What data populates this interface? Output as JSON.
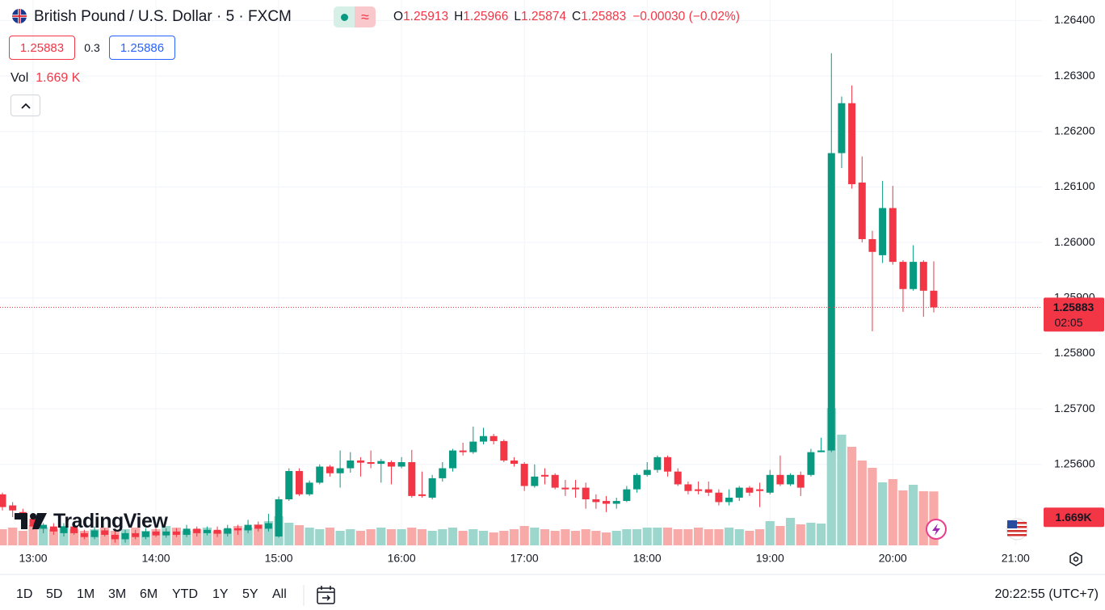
{
  "header": {
    "title": "British Pound / U.S. Dollar · 5 · FXCM",
    "o": "O",
    "h": "H",
    "l": "L",
    "c": "C",
    "change": "−0.00030 (−0.02%)",
    "spread": "0.3",
    "buy": "1.25886",
    "vol_label": "Vol",
    "vol": "1.669 K"
  },
  "logo": "TradingView",
  "footer": {
    "ranges": [
      "1D",
      "5D",
      "1M",
      "3M",
      "6M",
      "YTD",
      "1Y",
      "5Y",
      "All"
    ],
    "clock": "20:22:55 (UTC+7)"
  },
  "chart_data": {
    "type": "candlestick",
    "categories": [
      null,
      null,
      null,
      "13:00",
      null,
      null,
      null,
      null,
      null,
      null,
      null,
      null,
      null,
      null,
      null,
      "14:00",
      null,
      null,
      null,
      null,
      null,
      null,
      null,
      null,
      null,
      null,
      null,
      "15:00",
      null,
      null,
      null,
      null,
      null,
      null,
      null,
      null,
      null,
      null,
      null,
      "16:00",
      null,
      null,
      null,
      null,
      null,
      null,
      null,
      null,
      null,
      null,
      null,
      "17:00",
      null,
      null,
      null,
      null,
      null,
      null,
      null,
      null,
      null,
      null,
      null,
      "18:00",
      null,
      null,
      null,
      null,
      null,
      null,
      null,
      null,
      null,
      null,
      null,
      "19:00",
      null,
      null,
      null,
      null,
      null,
      null,
      null,
      null,
      null,
      null,
      null,
      "20:00",
      null,
      null,
      null,
      null,
      null,
      null,
      null,
      null,
      null,
      null,
      null,
      "21:00"
    ],
    "open": [
      1.25546,
      1.25526,
      1.25514,
      1.25502,
      1.25484,
      1.25488,
      1.25476,
      1.25488,
      1.25476,
      1.25469,
      1.25481,
      1.25473,
      1.25465,
      1.25476,
      1.25469,
      1.25479,
      1.25472,
      1.25479,
      1.25473,
      1.25484,
      1.25476,
      1.25482,
      1.25475,
      1.25485,
      1.25481,
      1.25491,
      1.25484,
      1.2547,
      1.25537,
      1.25588,
      1.25546,
      1.25567,
      1.25596,
      1.25584,
      1.25593,
      1.25607,
      1.25604,
      1.25601,
      1.25604,
      1.25596,
      1.25604,
      1.25546,
      1.2554,
      1.25575,
      1.25593,
      1.25625,
      1.25622,
      1.25641,
      1.25651,
      1.25642,
      1.25607,
      1.25601,
      1.25561,
      1.25581,
      1.25581,
      1.25558,
      1.25558,
      1.25558,
      1.25537,
      1.25534,
      1.25529,
      1.25534,
      1.25555,
      1.25581,
      1.2559,
      1.25613,
      1.25587,
      1.25564,
      1.25555,
      1.25555,
      1.25549,
      1.25532,
      1.2554,
      1.25558,
      1.25555,
      1.25549,
      1.25581,
      1.25564,
      1.25581,
      1.25581,
      1.25622,
      1.25625,
      1.26161,
      1.26251,
      1.26108,
      1.26006,
      1.25977,
      1.26062,
      1.25965,
      1.25916,
      1.25965,
      1.25913,
      null,
      null,
      null,
      null,
      null,
      null,
      null,
      null
    ],
    "high": [
      1.25549,
      1.25532,
      1.2552,
      1.25511,
      1.25494,
      1.25494,
      1.25494,
      1.25497,
      1.25482,
      1.25488,
      1.25485,
      1.25482,
      1.25482,
      1.25482,
      1.25485,
      1.25488,
      1.25485,
      1.25485,
      1.25491,
      1.25488,
      1.25488,
      1.25488,
      1.25491,
      1.25491,
      1.255,
      1.25497,
      1.25511,
      1.25542,
      1.25593,
      1.25593,
      1.25571,
      1.256,
      1.25599,
      1.25625,
      1.25622,
      1.25613,
      1.25625,
      1.2561,
      1.25607,
      1.25613,
      1.25626,
      1.25587,
      1.25581,
      1.25604,
      1.25628,
      1.25639,
      1.25668,
      1.25666,
      1.25655,
      1.25645,
      1.25613,
      1.25604,
      1.256,
      1.25593,
      1.25584,
      1.25572,
      1.25572,
      1.25567,
      1.25546,
      1.25543,
      1.2554,
      1.25561,
      1.25584,
      1.25604,
      1.25616,
      1.25616,
      1.25593,
      1.25569,
      1.25569,
      1.25569,
      1.25555,
      1.25555,
      1.25561,
      1.25561,
      1.25567,
      1.2559,
      1.25616,
      1.25584,
      1.25587,
      1.25628,
      1.25648,
      1.26341,
      1.26263,
      1.26283,
      1.26155,
      1.26021,
      1.26111,
      1.26102,
      1.25968,
      1.25995,
      1.25968,
      1.25966,
      null,
      null,
      null,
      null,
      null,
      null,
      null,
      null
    ],
    "low": [
      1.25517,
      1.25505,
      1.25497,
      1.25482,
      1.25476,
      1.25473,
      1.2547,
      1.25473,
      1.25465,
      1.25465,
      1.2547,
      1.25459,
      1.25459,
      1.25465,
      1.25465,
      1.25469,
      1.25468,
      1.25469,
      1.25469,
      1.2547,
      1.25472,
      1.25469,
      1.2547,
      1.25473,
      1.25476,
      1.25479,
      1.25479,
      1.25468,
      1.25534,
      1.25543,
      1.25543,
      1.25564,
      1.25578,
      1.25558,
      1.25585,
      1.25578,
      1.25593,
      1.25567,
      1.25564,
      1.25593,
      1.2554,
      1.2554,
      1.25537,
      1.25569,
      1.25587,
      1.25616,
      1.25619,
      1.25636,
      1.25636,
      1.25604,
      1.25596,
      1.25552,
      1.25558,
      1.25564,
      1.25555,
      1.25543,
      1.2554,
      1.2552,
      1.2552,
      1.25514,
      1.2552,
      1.25532,
      1.25549,
      1.25578,
      1.25585,
      1.25578,
      1.25561,
      1.25546,
      1.25546,
      1.25543,
      1.25526,
      1.25526,
      1.25534,
      1.25543,
      1.25523,
      1.25546,
      1.25561,
      1.25561,
      1.25543,
      1.25578,
      1.25622,
      1.25622,
      1.26134,
      1.26097,
      1.26,
      1.2584,
      1.25963,
      1.2596,
      1.25875,
      1.25913,
      1.25866,
      1.25874,
      null,
      null,
      null,
      null,
      null,
      null,
      null,
      null
    ],
    "close": [
      1.25523,
      1.25517,
      1.25505,
      1.25488,
      1.25491,
      1.25479,
      1.25488,
      1.25476,
      1.25469,
      1.25481,
      1.25473,
      1.25465,
      1.25476,
      1.25469,
      1.25479,
      1.25472,
      1.25479,
      1.25473,
      1.25484,
      1.25476,
      1.25482,
      1.25475,
      1.25485,
      1.25481,
      1.25491,
      1.25484,
      1.25494,
      1.25537,
      1.25588,
      1.25546,
      1.25567,
      1.25596,
      1.25584,
      1.25593,
      1.25607,
      1.25603,
      1.25601,
      1.25606,
      1.25596,
      1.25604,
      1.25543,
      1.25543,
      1.25575,
      1.25593,
      1.25625,
      1.25622,
      1.25641,
      1.25651,
      1.25642,
      1.25607,
      1.25601,
      1.25561,
      1.25578,
      1.25578,
      1.25558,
      1.25555,
      1.25555,
      1.25537,
      1.25532,
      1.25529,
      1.25534,
      1.25555,
      1.25581,
      1.2559,
      1.25613,
      1.25587,
      1.25564,
      1.25552,
      1.25552,
      1.25549,
      1.25532,
      1.2554,
      1.25558,
      1.25549,
      1.25552,
      1.25581,
      1.25564,
      1.25581,
      1.25558,
      1.25622,
      1.25625,
      1.26161,
      1.26251,
      1.26105,
      1.26006,
      1.25983,
      1.26062,
      1.25965,
      1.25916,
      1.25965,
      1.25913,
      1.25883,
      null,
      null,
      null,
      null,
      null,
      null,
      null,
      null
    ],
    "volume": [
      500,
      550,
      450,
      625,
      550,
      500,
      600,
      500,
      450,
      500,
      550,
      450,
      500,
      550,
      450,
      500,
      600,
      550,
      450,
      500,
      550,
      450,
      500,
      600,
      550,
      650,
      750,
      900,
      700,
      625,
      550,
      500,
      550,
      450,
      500,
      450,
      500,
      550,
      500,
      500,
      550,
      500,
      450,
      500,
      550,
      450,
      500,
      450,
      400,
      450,
      500,
      600,
      550,
      500,
      450,
      500,
      450,
      500,
      450,
      400,
      450,
      500,
      500,
      550,
      550,
      550,
      500,
      500,
      550,
      500,
      500,
      550,
      500,
      450,
      500,
      750,
      600,
      850,
      650,
      700,
      675,
      4250,
      3425,
      3050,
      2625,
      2400,
      1950,
      2050,
      1700,
      1875,
      1675,
      1669,
      null,
      null,
      null,
      null,
      null,
      null,
      null,
      null
    ],
    "up_color": "#089981",
    "down_color": "#f23645",
    "up_volume_color": "#9dd6cc",
    "down_volume_color": "#f8aaa8",
    "ylim": [
      1.25454,
      1.26437
    ],
    "yticks": [
      {
        "value": 1.256,
        "label": "1.25600"
      },
      {
        "value": 1.257,
        "label": "1.25700"
      },
      {
        "value": 1.258,
        "label": "1.25800"
      },
      {
        "value": 1.259,
        "label": "1.25900"
      },
      {
        "value": 1.26,
        "label": "1.26000"
      },
      {
        "value": 1.261,
        "label": "1.26100"
      },
      {
        "value": 1.262,
        "label": "1.26200"
      },
      {
        "value": 1.263,
        "label": "1.26300"
      },
      {
        "value": 1.264,
        "label": "1.26400"
      }
    ],
    "y2lim": [
      0,
      16875
    ],
    "grid": true,
    "countdown": "02:05",
    "volume_axis_label": "1.669K"
  }
}
